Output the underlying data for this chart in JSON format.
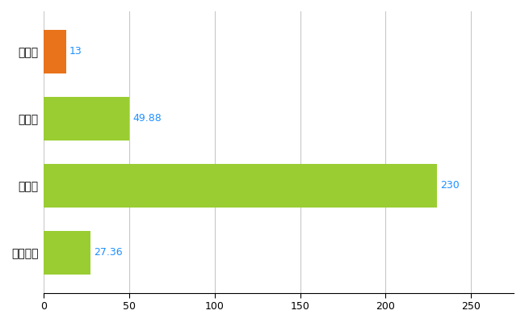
{
  "categories": [
    "佐用町",
    "県平均",
    "県最大",
    "全国平均"
  ],
  "values": [
    13,
    49.88,
    230,
    27.36
  ],
  "bar_colors": [
    "#E8731A",
    "#9ACD32",
    "#9ACD32",
    "#9ACD32"
  ],
  "value_labels": [
    "13",
    "49.88",
    "230",
    "27.36"
  ],
  "value_label_color": "#1E90FF",
  "xlim": [
    0,
    275
  ],
  "xticks": [
    0,
    50,
    100,
    150,
    200,
    250
  ],
  "grid_color": "#C8C8C8",
  "background_color": "#FFFFFF",
  "bar_height": 0.65,
  "figsize": [
    6.5,
    4.0
  ],
  "dpi": 100
}
